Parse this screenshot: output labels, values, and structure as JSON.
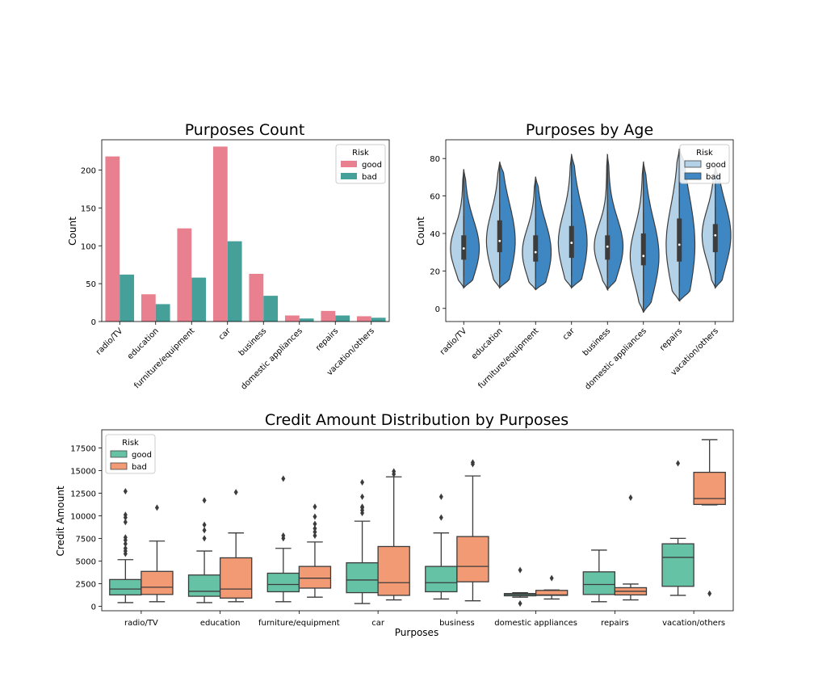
{
  "chart_data": [
    {
      "type": "bar",
      "title": "Purposes Count",
      "xlabel": "",
      "ylabel": "Count",
      "ylim": [
        0,
        240
      ],
      "yticks": [
        0,
        50,
        100,
        150,
        200
      ],
      "categories": [
        "radio/TV",
        "education",
        "furniture/equipment",
        "car",
        "business",
        "domestic appliances",
        "repairs",
        "vacation/others"
      ],
      "series": [
        {
          "name": "good",
          "color": "#e8808f",
          "values": [
            218,
            36,
            123,
            231,
            63,
            8,
            14,
            7
          ]
        },
        {
          "name": "bad",
          "color": "#45a09a",
          "values": [
            62,
            23,
            58,
            106,
            34,
            4,
            8,
            5
          ]
        }
      ],
      "legend": {
        "title": "Risk",
        "position": "top-right"
      }
    },
    {
      "type": "violin",
      "title": "Purposes by Age",
      "xlabel": "",
      "ylabel": "Count",
      "ylim": [
        -7,
        90
      ],
      "yticks": [
        0,
        20,
        40,
        60,
        80
      ],
      "categories": [
        "radio/TV",
        "education",
        "furniture/equipment",
        "car",
        "business",
        "domestic appliances",
        "repairs",
        "vacation/others"
      ],
      "series": [
        {
          "name": "good",
          "color": "#b3d1e7"
        },
        {
          "name": "bad",
          "color": "#3e87c3"
        }
      ],
      "stats": [
        {
          "min": 11,
          "max": 74,
          "q1": 26,
          "median": 32,
          "q3": 39
        },
        {
          "min": 11,
          "max": 78,
          "q1": 30,
          "median": 36,
          "q3": 47
        },
        {
          "min": 10,
          "max": 70,
          "q1": 25,
          "median": 30,
          "q3": 39
        },
        {
          "min": 11,
          "max": 82,
          "q1": 27,
          "median": 35,
          "q3": 44
        },
        {
          "min": 10,
          "max": 82,
          "q1": 26,
          "median": 33,
          "q3": 39
        },
        {
          "min": -2,
          "max": 78,
          "q1": 23,
          "median": 28,
          "q3": 40
        },
        {
          "min": 4,
          "max": 85,
          "q1": 25,
          "median": 34,
          "q3": 48
        },
        {
          "min": 11,
          "max": 75,
          "q1": 30,
          "median": 39,
          "q3": 45
        }
      ],
      "legend": {
        "title": "Risk",
        "position": "top-right"
      }
    },
    {
      "type": "box",
      "title": "Credit Amount Distribution by Purposes",
      "xlabel": "Purposes",
      "ylabel": "Credit Amount",
      "ylim": [
        -500,
        19500
      ],
      "yticks": [
        0,
        2500,
        5000,
        7500,
        10000,
        12500,
        15000,
        17500
      ],
      "categories": [
        "radio/TV",
        "education",
        "furniture/equipment",
        "car",
        "business",
        "domestic appliances",
        "repairs",
        "vacation/others"
      ],
      "series": [
        {
          "name": "good",
          "color": "#66c2a5",
          "boxes": [
            {
              "whislo": 400,
              "q1": 1250,
              "med": 1900,
              "q3": 2950,
              "whishi": 5150,
              "fliers": [
                5800,
                6100,
                6400,
                6900,
                7300,
                7600,
                9300,
                9800,
                10100,
                12700
              ]
            },
            {
              "whislo": 400,
              "q1": 1100,
              "med": 1650,
              "q3": 3450,
              "whishi": 6100,
              "fliers": [
                7500,
                8400,
                9000,
                11700
              ]
            },
            {
              "whislo": 500,
              "q1": 1600,
              "med": 2400,
              "q3": 3650,
              "whishi": 6400,
              "fliers": [
                7500,
                7800,
                14100
              ]
            },
            {
              "whislo": 300,
              "q1": 1500,
              "med": 2900,
              "q3": 4800,
              "whishi": 9400,
              "fliers": [
                10300,
                10600,
                10900,
                11000,
                12100,
                13700
              ]
            },
            {
              "whislo": 800,
              "q1": 1600,
              "med": 2600,
              "q3": 4400,
              "whishi": 8100,
              "fliers": [
                9800,
                12100
              ]
            },
            {
              "whislo": 1000,
              "q1": 1150,
              "med": 1300,
              "q3": 1400,
              "whishi": 1500,
              "fliers": [
                300,
                4000
              ]
            },
            {
              "whislo": 500,
              "q1": 1300,
              "med": 2400,
              "q3": 3800,
              "whishi": 6200,
              "fliers": []
            },
            {
              "whislo": 1200,
              "q1": 2200,
              "med": 5400,
              "q3": 6900,
              "whishi": 7500,
              "fliers": [
                15800
              ]
            }
          ]
        },
        {
          "name": "bad",
          "color": "#f29a73",
          "boxes": [
            {
              "whislo": 500,
              "q1": 1300,
              "med": 2100,
              "q3": 3850,
              "whishi": 7200,
              "fliers": [
                10900
              ]
            },
            {
              "whislo": 500,
              "q1": 900,
              "med": 1900,
              "q3": 5350,
              "whishi": 8100,
              "fliers": [
                12600
              ]
            },
            {
              "whislo": 1000,
              "q1": 2000,
              "med": 3100,
              "q3": 4400,
              "whishi": 7100,
              "fliers": [
                7800,
                8200,
                8600,
                9100,
                9900,
                11000
              ]
            },
            {
              "whislo": 700,
              "q1": 1200,
              "med": 2600,
              "q3": 6600,
              "whishi": 14300,
              "fliers": [
                14600,
                14900
              ]
            },
            {
              "whislo": 600,
              "q1": 2700,
              "med": 4400,
              "q3": 7700,
              "whishi": 14400,
              "fliers": [
                15700,
                15900
              ]
            },
            {
              "whislo": 800,
              "q1": 1200,
              "med": 1250,
              "q3": 1750,
              "whishi": 1800,
              "fliers": [
                3100
              ]
            },
            {
              "whislo": 700,
              "q1": 1250,
              "med": 1650,
              "q3": 2050,
              "whishi": 2450,
              "fliers": [
                12000
              ]
            },
            {
              "whislo": 11200,
              "q1": 11250,
              "med": 11900,
              "q3": 14800,
              "whishi": 18400,
              "fliers": [
                1400
              ]
            }
          ]
        }
      ],
      "legend": {
        "title": "Risk",
        "position": "top-left"
      }
    }
  ]
}
